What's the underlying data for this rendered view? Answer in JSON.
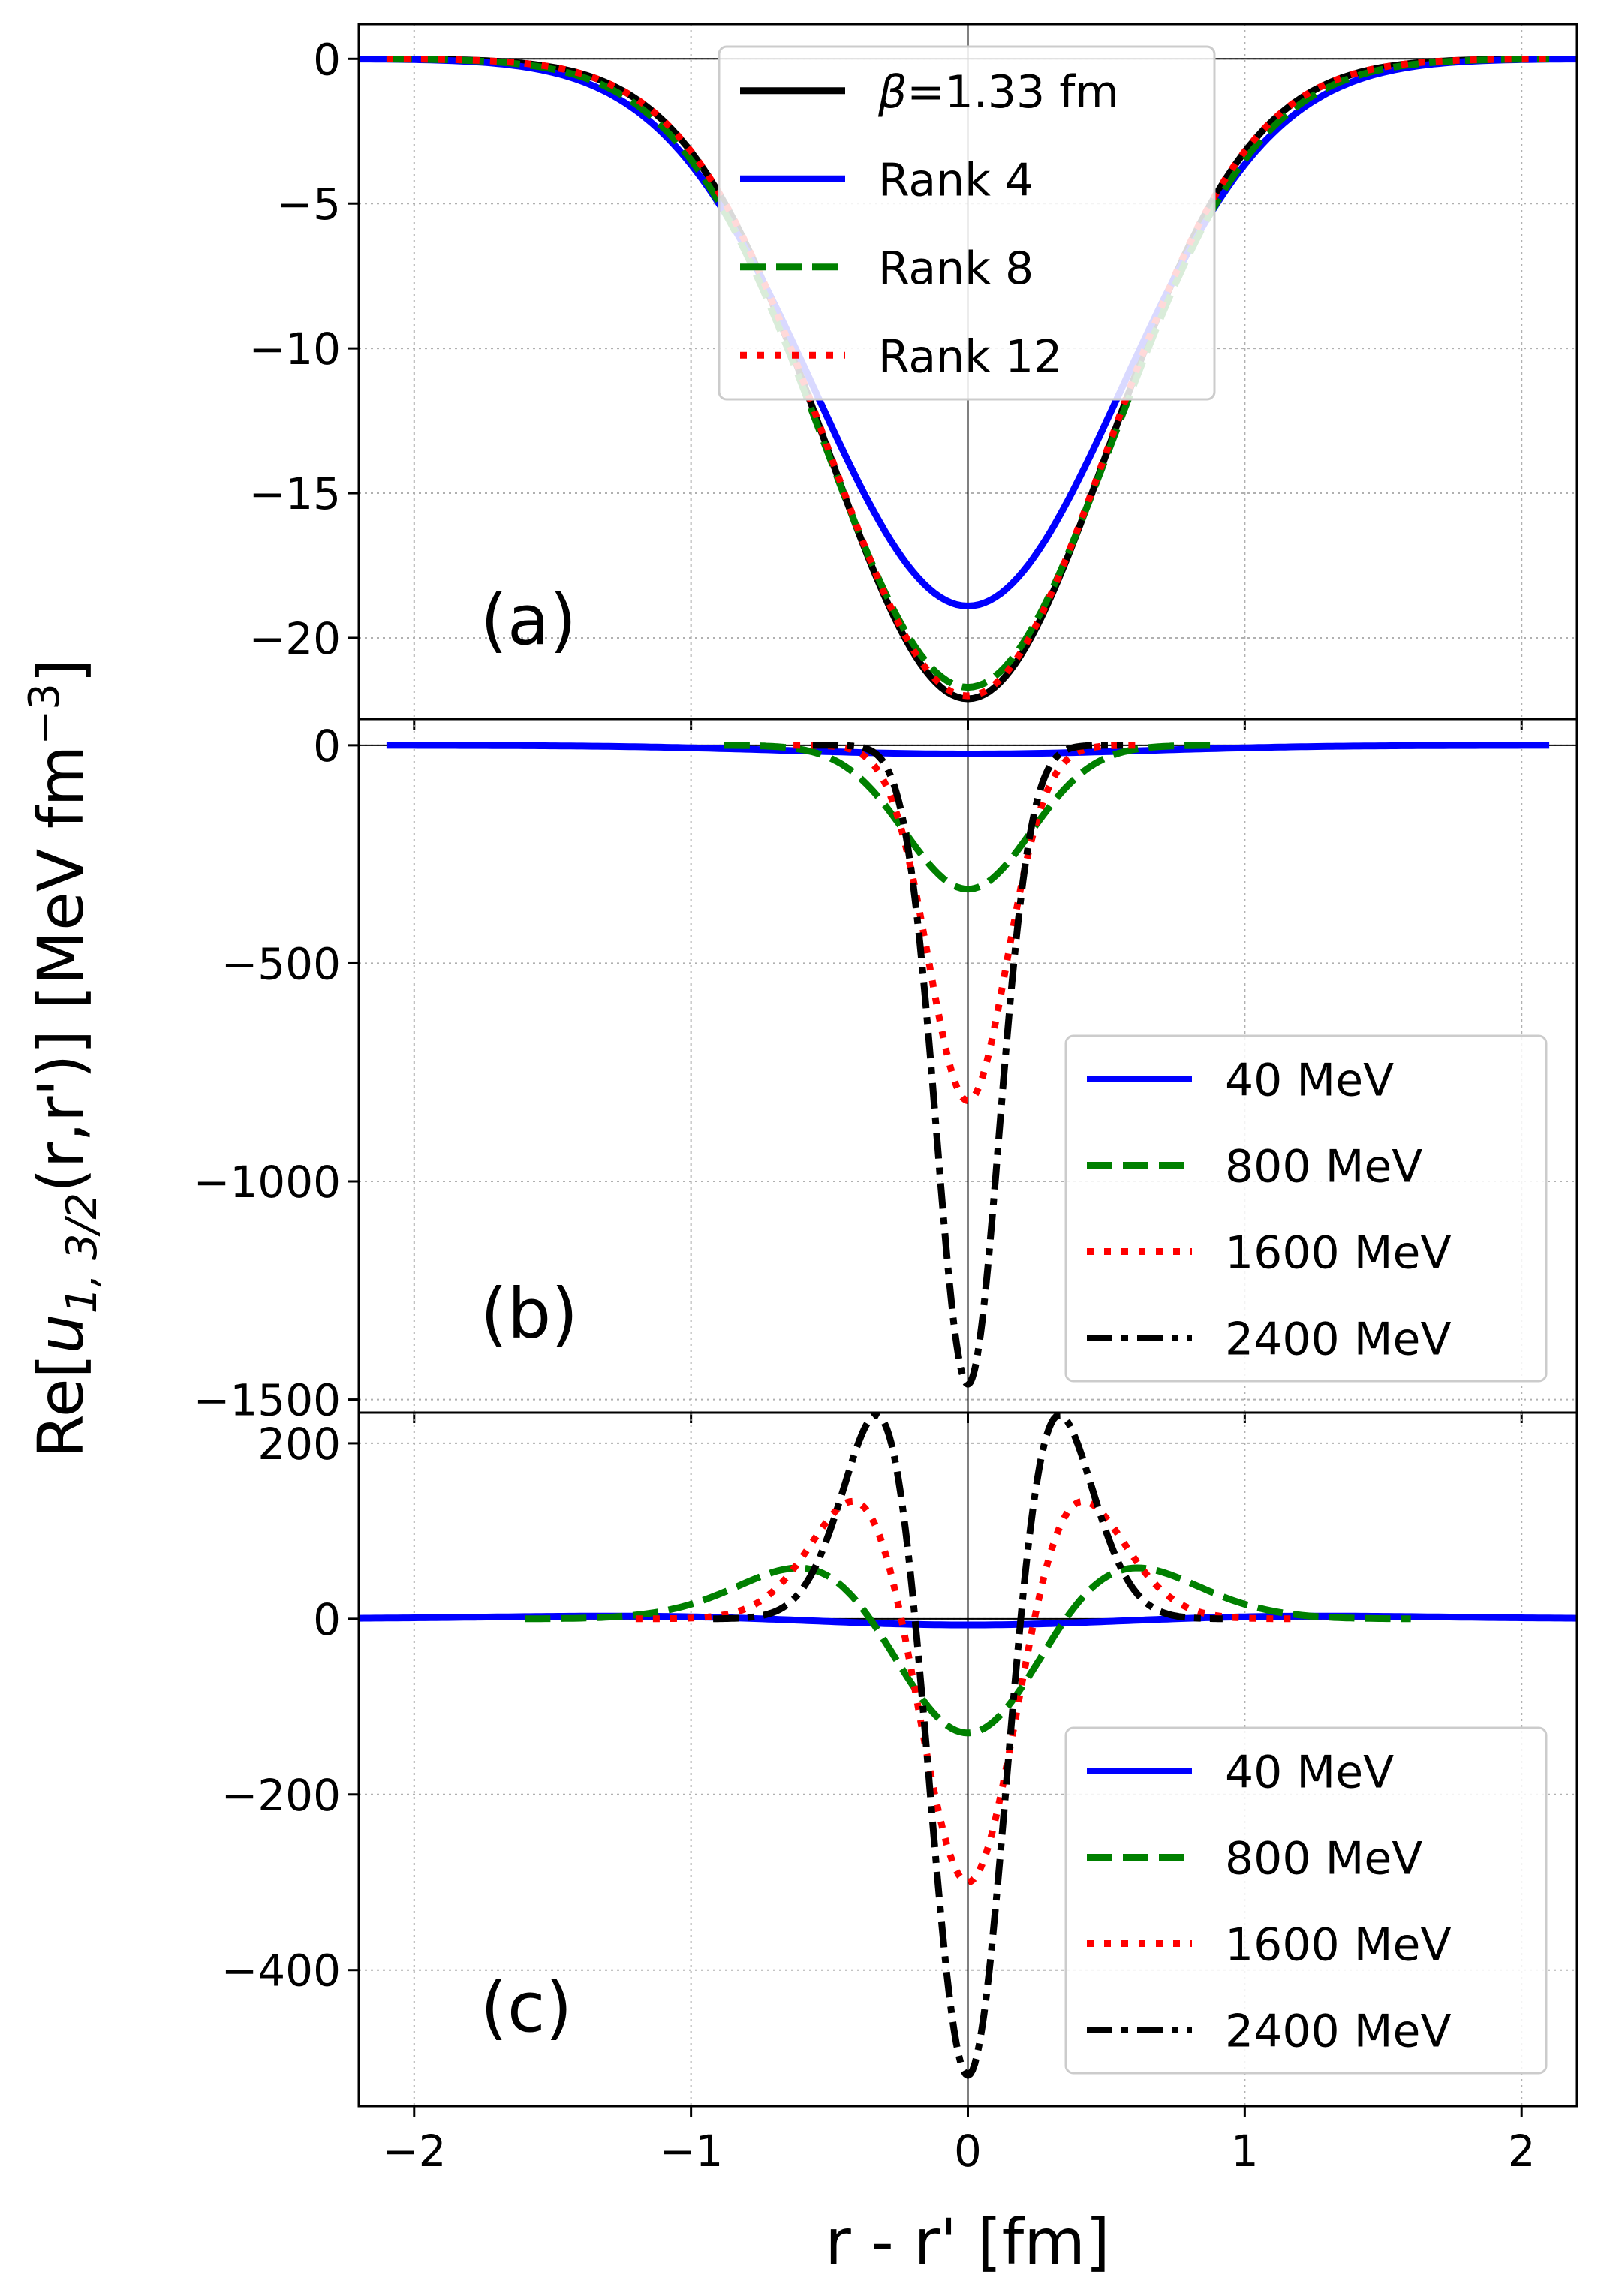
{
  "chart_data": [
    {
      "type": "line",
      "panel_label": "(a)",
      "xlim": [
        -2.2,
        2.2
      ],
      "ylim": [
        -22.8,
        1.2
      ],
      "xticks": [
        -2,
        -1,
        0,
        1,
        2
      ],
      "yticks": [
        0,
        -5,
        -10,
        -15,
        -20
      ],
      "ytick_labels": [
        "0",
        "−5",
        "−10",
        "−15",
        "−20"
      ],
      "grid": true,
      "legend_position": "top-center",
      "series": [
        {
          "name": "β=1.33 fm",
          "label_prefix": "β",
          "label_rest": "=1.33 fm",
          "color": "#000000",
          "style": "solid",
          "profile": "gauss",
          "peak": -22.1,
          "width": 0.72,
          "range": [
            -2.1,
            2.1
          ]
        },
        {
          "name": "Rank 4",
          "color": "#0000ff",
          "style": "solid",
          "profile": "gauss",
          "peak": -18.9,
          "width": 0.78,
          "range": [
            -2.2,
            2.2
          ]
        },
        {
          "name": "Rank 8",
          "color": "#008000",
          "style": "dashed",
          "profile": "gauss",
          "peak": -21.7,
          "width": 0.74,
          "range": [
            -2.1,
            2.1
          ]
        },
        {
          "name": "Rank 12",
          "color": "#ff0000",
          "style": "dotted",
          "profile": "gauss",
          "peak": -22.0,
          "width": 0.72,
          "range": [
            -2.1,
            2.1
          ]
        }
      ]
    },
    {
      "type": "line",
      "panel_label": "(b)",
      "xlim": [
        -2.2,
        2.2
      ],
      "ylim": [
        -1530,
        60
      ],
      "xticks": [
        -2,
        -1,
        0,
        1,
        2
      ],
      "yticks": [
        0,
        -500,
        -1000,
        -1500
      ],
      "ytick_labels": [
        "0",
        "−500",
        "−1000",
        "−1500"
      ],
      "grid": true,
      "legend_position": "lower-right",
      "series": [
        {
          "name": "40 MeV",
          "color": "#0000ff",
          "style": "solid",
          "profile": "gauss",
          "peak": -20,
          "width": 0.9,
          "range": [
            -2.1,
            2.1
          ]
        },
        {
          "name": "800 MeV",
          "color": "#008000",
          "style": "dashed",
          "profile": "gauss",
          "peak": -330,
          "width": 0.32,
          "range": [
            -0.88,
            0.88
          ]
        },
        {
          "name": "1600 MeV",
          "color": "#ff0000",
          "style": "dotted",
          "profile": "gauss",
          "peak": -815,
          "width": 0.2,
          "range": [
            -0.63,
            0.63
          ]
        },
        {
          "name": "2400 MeV",
          "color": "#000000",
          "style": "dashdot",
          "profile": "gauss",
          "peak": -1465,
          "width": 0.16,
          "range": [
            -0.56,
            0.56
          ]
        }
      ]
    },
    {
      "type": "line",
      "panel_label": "(c)",
      "xlim": [
        -2.2,
        2.2
      ],
      "ylim": [
        -555,
        235
      ],
      "xticks": [
        -2,
        -1,
        0,
        1,
        2
      ],
      "xtick_labels": [
        "−2",
        "−1",
        "0",
        "1",
        "2"
      ],
      "yticks": [
        200,
        0,
        -200,
        -400
      ],
      "ytick_labels": [
        "200",
        "0",
        "−200",
        "−400"
      ],
      "grid": true,
      "legend_position": "lower-right",
      "xlabel": "r - r' [fm]",
      "series": [
        {
          "name": "40 MeV",
          "color": "#0000ff",
          "style": "solid",
          "profile": "hermite",
          "peak": -7,
          "width": 1.05,
          "range": [
            -2.2,
            2.2
          ]
        },
        {
          "name": "800 MeV",
          "color": "#008000",
          "style": "dashed",
          "profile": "hermite",
          "peak": -130,
          "width": 0.5,
          "range": [
            -1.6,
            1.6
          ]
        },
        {
          "name": "1600 MeV",
          "color": "#ff0000",
          "style": "dotted",
          "profile": "hermite",
          "peak": -300,
          "width": 0.34,
          "range": [
            -1.2,
            1.2
          ]
        },
        {
          "name": "2400 MeV",
          "color": "#000000",
          "style": "dashdot",
          "profile": "hermite",
          "peak": -520,
          "width": 0.27,
          "range": [
            -0.92,
            0.92
          ]
        }
      ]
    }
  ],
  "ylabel": {
    "prefix": "Re[",
    "symbol": "u",
    "subscript": "1, 3/2",
    "rest": "(r,r')] [MeV fm",
    "superscript": "−3",
    "suffix": "]"
  }
}
